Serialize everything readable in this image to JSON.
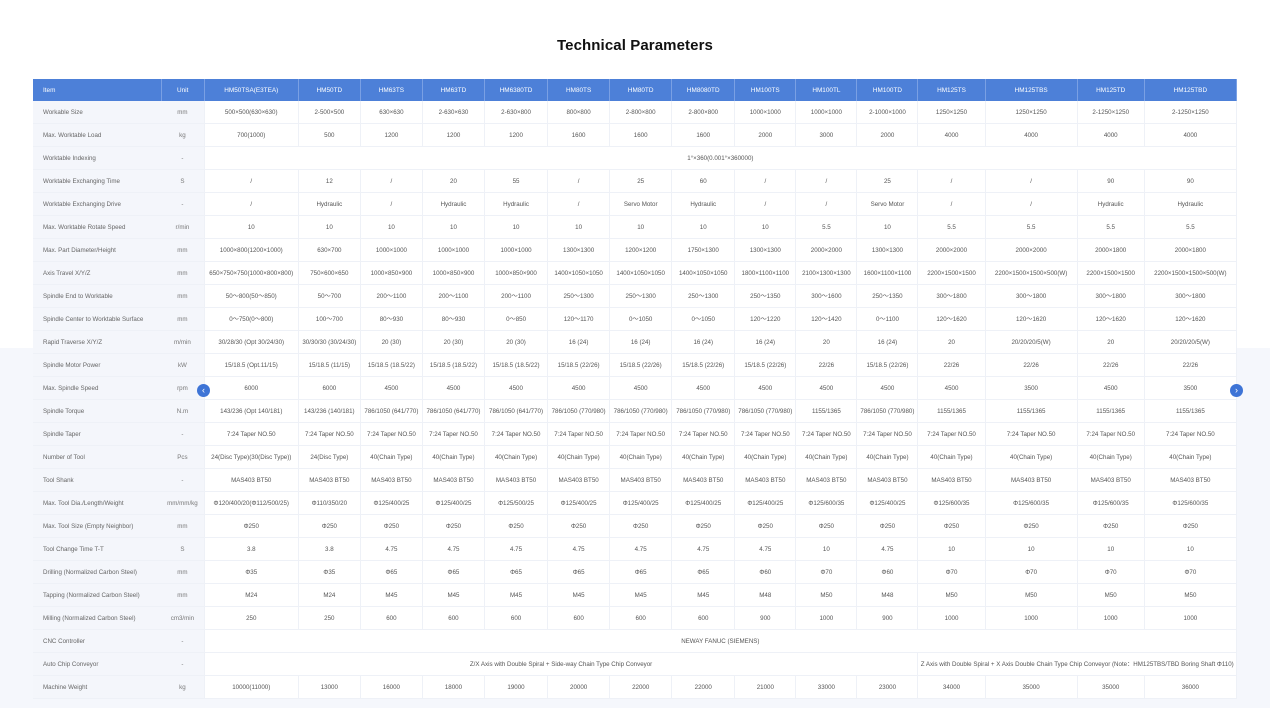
{
  "page": {
    "title": "Technical Parameters"
  },
  "nav": {
    "prev_icon": "‹",
    "next_icon": "›"
  },
  "colors": {
    "header_bg": "#4d80d8",
    "nav_button": "#3e74d6"
  },
  "table": {
    "headers": [
      "Item",
      "Unit",
      "HM50TSA(E3TEA)",
      "HM50TD",
      "HM63TS",
      "HM63TD",
      "HM6380TD",
      "HM80TS",
      "HM80TD",
      "HM8080TD",
      "HM100TS",
      "HM100TL",
      "HM100TD",
      "HM125TS",
      "HM125TBS",
      "HM125TD",
      "HM125TBD"
    ],
    "rows": [
      {
        "item": "Workable Size",
        "unit": "mm",
        "cells": [
          "500×500(630×630)",
          "2-500×500",
          "630×630",
          "2-630×630",
          "2-630×800",
          "800×800",
          "2-800×800",
          "2-800×800",
          "1000×1000",
          "1000×1000",
          "2-1000×1000",
          "1250×1250",
          "1250×1250",
          "2-1250×1250",
          "2-1250×1250"
        ]
      },
      {
        "item": "Max. Worktable Load",
        "unit": "kg",
        "cells": [
          "700(1000)",
          "500",
          "1200",
          "1200",
          "1200",
          "1600",
          "1600",
          "1600",
          "2000",
          "3000",
          "2000",
          "4000",
          "4000",
          "4000",
          "4000"
        ]
      },
      {
        "item": "Worktable Indexing",
        "unit": "-",
        "span": "1°×360(0.001°×360000)"
      },
      {
        "item": "Worktable Exchanging Time",
        "unit": "S",
        "cells": [
          "/",
          "12",
          "/",
          "20",
          "55",
          "/",
          "25",
          "60",
          "/",
          "/",
          "25",
          "/",
          "/",
          "90",
          "90"
        ]
      },
      {
        "item": "Worktable Exchanging Drive",
        "unit": "-",
        "cells": [
          "/",
          "Hydraulic",
          "/",
          "Hydraulic",
          "Hydraulic",
          "/",
          "Servo  Motor",
          "Hydraulic",
          "/",
          "/",
          "Servo  Motor",
          "/",
          "/",
          "Hydraulic",
          "Hydraulic"
        ]
      },
      {
        "item": "Max. Worktable Rotate Speed",
        "unit": "r/min",
        "cells": [
          "10",
          "10",
          "10",
          "10",
          "10",
          "10",
          "10",
          "10",
          "10",
          "5.5",
          "10",
          "5.5",
          "5.5",
          "5.5",
          "5.5"
        ]
      },
      {
        "item": "Max. Part Diameter/Height",
        "unit": "mm",
        "cells": [
          "1000×800(1200×1000)",
          "630×700",
          "1000×1000",
          "1000×1000",
          "1000×1000",
          "1300×1300",
          "1200×1200",
          "1750×1300",
          "1300×1300",
          "2000×2000",
          "1300×1300",
          "2000×2000",
          "2000×2000",
          "2000×1800",
          "2000×1800"
        ]
      },
      {
        "item": "Axis Travel X/Y/Z",
        "unit": "mm",
        "cells": [
          "650×750×750(1000×800×800)",
          "750×600×650",
          "1000×850×900",
          "1000×850×900",
          "1000×850×900",
          "1400×1050×1050",
          "1400×1050×1050",
          "1400×1050×1050",
          "1800×1100×1100",
          "2100×1300×1300",
          "1600×1100×1100",
          "2200×1500×1500",
          "2200×1500×1500×500(W)",
          "2200×1500×1500",
          "2200×1500×1500×500(W)"
        ]
      },
      {
        "item": "Spindle End to Worktable",
        "unit": "mm",
        "cells": [
          "50～800(50～850)",
          "50～700",
          "200～1100",
          "200～1100",
          "200～1100",
          "250～1300",
          "250～1300",
          "250～1300",
          "250～1350",
          "300～1600",
          "250～1350",
          "300～1800",
          "300～1800",
          "300～1800",
          "300～1800"
        ]
      },
      {
        "item": "Spindle Center to Worktable Surface",
        "unit": "mm",
        "cells": [
          "0～750(0～800)",
          "100～700",
          "80～930",
          "80～930",
          "0～850",
          "120～1170",
          "0～1050",
          "0～1050",
          "120～1220",
          "120～1420",
          "0～1100",
          "120～1620",
          "120～1620",
          "120～1620",
          "120～1620"
        ]
      },
      {
        "item": "Rapid Traverse X/Y/Z",
        "unit": "m/min",
        "cells": [
          "30/28/30  (Opt 30/24/30)",
          "30/30/30 (30/24/30)",
          "20  (30)",
          "20  (30)",
          "20  (30)",
          "16  (24)",
          "16  (24)",
          "16  (24)",
          "16  (24)",
          "20",
          "16  (24)",
          "20",
          "20/20/20/5(W)",
          "20",
          "20/20/20/5(W)"
        ]
      },
      {
        "item": "Spindle Motor Power",
        "unit": "kW",
        "cells": [
          "15/18.5  (Opt.11/15)",
          "15/18.5  (11/15)",
          "15/18.5  (18.5/22)",
          "15/18.5  (18.5/22)",
          "15/18.5  (18.5/22)",
          "15/18.5   (22/26)",
          "15/18.5   (22/26)",
          "15/18.5   (22/26)",
          "15/18.5   (22/26)",
          "22/26",
          "15/18.5   (22/26)",
          "22/26",
          "22/26",
          "22/26",
          "22/26"
        ]
      },
      {
        "item": "Max. Spindle Speed",
        "unit": "rpm",
        "cells": [
          "6000",
          "6000",
          "4500",
          "4500",
          "4500",
          "4500",
          "4500",
          "4500",
          "4500",
          "4500",
          "4500",
          "4500",
          "3500",
          "4500",
          "3500"
        ]
      },
      {
        "item": "Spindle Torque",
        "unit": "N.m",
        "cells": [
          "143/236  (Opt 140/181)",
          "143/236  (140/181)",
          "786/1050 (641/770)",
          "786/1050 (641/770)",
          "786/1050 (641/770)",
          "786/1050 (770/980)",
          "786/1050 (770/980)",
          "786/1050 (770/980)",
          "786/1050 (770/980)",
          "1155/1365",
          "786/1050 (770/980)",
          "1155/1365",
          "1155/1365",
          "1155/1365",
          "1155/1365"
        ]
      },
      {
        "item": "Spindle Taper",
        "unit": "-",
        "cells": [
          "7:24  Taper NO.50",
          "7:24  Taper NO.50",
          "7:24  Taper NO.50",
          "7:24  Taper NO.50",
          "7:24  Taper NO.50",
          "7:24  Taper NO.50",
          "7:24  Taper NO.50",
          "7:24  Taper NO.50",
          "7:24  Taper NO.50",
          "7:24  Taper NO.50",
          "7:24  Taper NO.50",
          "7:24  Taper NO.50",
          "7:24  Taper NO.50",
          "7:24  Taper NO.50",
          "7:24  Taper NO.50"
        ]
      },
      {
        "item": "Number of Tool",
        "unit": "Pcs",
        "cells": [
          "24(Disc  Type)(30(Disc Type))",
          "24(Disc  Type)",
          "40(Chain  Type)",
          "40(Chain  Type)",
          "40(Chain  Type)",
          "40(Chain  Type)",
          "40(Chain  Type)",
          "40(Chain  Type)",
          "40(Chain  Type)",
          "40(Chain  Type)",
          "40(Chain  Type)",
          "40(Chain  Type)",
          "40(Chain  Type)",
          "40(Chain  Type)",
          "40(Chain  Type)"
        ]
      },
      {
        "item": "Tool Shank",
        "unit": "-",
        "cells": [
          "MAS403   BT50",
          "MAS403   BT50",
          "MAS403   BT50",
          "MAS403   BT50",
          "MAS403   BT50",
          "MAS403   BT50",
          "MAS403   BT50",
          "MAS403   BT50",
          "MAS403   BT50",
          "MAS403   BT50",
          "MAS403   BT50",
          "MAS403   BT50",
          "MAS403   BT50",
          "MAS403   BT50",
          "MAS403   BT50"
        ]
      },
      {
        "item": "Max. Tool Dia./Length/Weight",
        "unit": "mm/mm/kg",
        "cells": [
          "Φ120/400/20(Φ112/500/25)",
          "Φ110/350/20",
          "Φ125/400/25",
          "Φ125/400/25",
          "Φ125/500/25",
          "Φ125/400/25",
          "Φ125/400/25",
          "Φ125/400/25",
          "Φ125/400/25",
          "Φ125/600/35",
          "Φ125/400/25",
          "Φ125/600/35",
          "Φ125/600/35",
          "Φ125/600/35",
          "Φ125/600/35"
        ]
      },
      {
        "item": "Max. Tool Size (Empty Neighbor)",
        "unit": "mm",
        "cells": [
          "Φ250",
          "Φ250",
          "Φ250",
          "Φ250",
          "Φ250",
          "Φ250",
          "Φ250",
          "Φ250",
          "Φ250",
          "Φ250",
          "Φ250",
          "Φ250",
          "Φ250",
          "Φ250",
          "Φ250"
        ]
      },
      {
        "item": "Tool Change Time T-T",
        "unit": "S",
        "cells": [
          "3.8",
          "3.8",
          "4.75",
          "4.75",
          "4.75",
          "4.75",
          "4.75",
          "4.75",
          "4.75",
          "10",
          "4.75",
          "10",
          "10",
          "10",
          "10"
        ]
      },
      {
        "item": "Drilling (Normalized Carbon Steel)",
        "unit": "mm",
        "cells": [
          "Φ35",
          "Φ35",
          "Φ65",
          "Φ65",
          "Φ65",
          "Φ65",
          "Φ65",
          "Φ65",
          "Φ60",
          "Φ70",
          "Φ60",
          "Φ70",
          "Φ70",
          "Φ70",
          "Φ70"
        ]
      },
      {
        "item": "Tapping (Normalized Carbon Steel)",
        "unit": "mm",
        "cells": [
          "M24",
          "M24",
          "M45",
          "M45",
          "M45",
          "M45",
          "M45",
          "M45",
          "M48",
          "M50",
          "M48",
          "M50",
          "M50",
          "M50",
          "M50"
        ]
      },
      {
        "item": "Milling (Normalized Carbon Steel)",
        "unit": "cm3/min",
        "cells": [
          "250",
          "250",
          "600",
          "600",
          "600",
          "600",
          "600",
          "600",
          "900",
          "1000",
          "900",
          "1000",
          "1000",
          "1000",
          "1000"
        ]
      },
      {
        "item": "CNC Controller",
        "unit": "-",
        "span": "NEWAY FANUC (SIEMENS)"
      },
      {
        "item": "Auto Chip Conveyor",
        "unit": "-",
        "split": {
          "a": "Z/X Axis with Double Spiral + Side-way Chain  Type Chip Conveyor",
          "b": "Z  Axis with Double Spiral + X Axis Double Chain Type Chip Conveyor (Note：HM125TBS/TBD Boring Shaft Φ110)"
        }
      },
      {
        "item": "Machine Weight",
        "unit": "kg",
        "cells": [
          "10000(11000)",
          "13000",
          "16000",
          "18000",
          "19000",
          "20000",
          "22000",
          "22000",
          "21000",
          "33000",
          "23000",
          "34000",
          "35000",
          "35000",
          "36000"
        ]
      }
    ]
  }
}
